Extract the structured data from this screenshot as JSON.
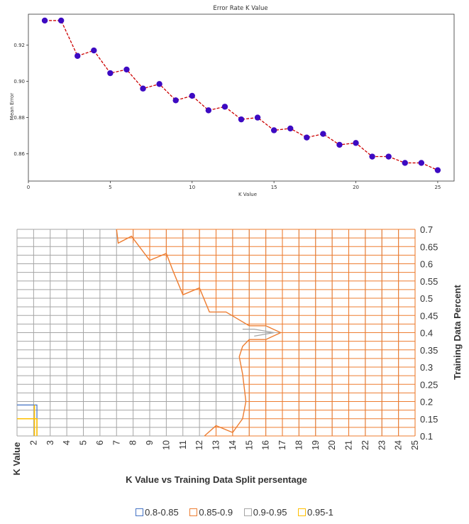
{
  "chart_data": [
    {
      "type": "line",
      "title": "Error Rate K Value",
      "xlabel": "K Value",
      "ylabel": "Mean Error",
      "xlim": [
        0,
        26
      ],
      "ylim": [
        0.845,
        0.937
      ],
      "xticks": [
        0,
        5,
        10,
        15,
        20,
        25
      ],
      "yticks": [
        0.86,
        0.88,
        0.9,
        0.92
      ],
      "ytick_labels": [
        "0.86",
        "0.88",
        "0.90",
        "0.92"
      ],
      "line_color": "#cc0000",
      "line_style": "dashed",
      "marker_color": "#3d0ac2",
      "x": [
        1,
        2,
        3,
        4,
        5,
        6,
        7,
        8,
        9,
        10,
        11,
        12,
        13,
        14,
        15,
        16,
        17,
        18,
        19,
        20,
        21,
        22,
        23,
        24,
        25
      ],
      "y": [
        0.9335,
        0.9335,
        0.914,
        0.917,
        0.9045,
        0.9065,
        0.896,
        0.8985,
        0.8895,
        0.892,
        0.884,
        0.886,
        0.879,
        0.88,
        0.873,
        0.874,
        0.869,
        0.871,
        0.865,
        0.866,
        0.8585,
        0.8585,
        0.855,
        0.855,
        0.851
      ]
    },
    {
      "type": "contour",
      "xlabel": "K Value vs Training Data Split persentage",
      "xlabel_left": "K Value",
      "ylabel": "Training Data Percent",
      "x_ticks": [
        "2",
        "3",
        "4",
        "5",
        "6",
        "7",
        "8",
        "9",
        "10",
        "11",
        "12",
        "13",
        "14",
        "15",
        "16",
        "17",
        "18",
        "19",
        "20",
        "21",
        "22",
        "23",
        "24",
        "25"
      ],
      "y_ticks": [
        "0.1",
        "0.15",
        "0.2",
        "0.25",
        "0.3",
        "0.35",
        "0.4",
        "0.45",
        "0.5",
        "0.55",
        "0.6",
        "0.65",
        "0.7"
      ],
      "grid": true,
      "legend": [
        {
          "label": "0.8-0.85",
          "color": "#4472c4"
        },
        {
          "label": "0.85-0.9",
          "color": "#ed7d31"
        },
        {
          "label": "0.9-0.95",
          "color": "#a5a5a5"
        },
        {
          "label": "0.95-1",
          "color": "#ffc000"
        }
      ],
      "boundary_085_09": [
        [
          7.0,
          0.7
        ],
        [
          7.1,
          0.66
        ],
        [
          7.9,
          0.68
        ],
        [
          9.0,
          0.61
        ],
        [
          10.0,
          0.63
        ],
        [
          10.4,
          0.58
        ],
        [
          11.0,
          0.51
        ],
        [
          12.0,
          0.53
        ],
        [
          12.6,
          0.46
        ],
        [
          13.6,
          0.46
        ],
        [
          15.0,
          0.42
        ],
        [
          16.0,
          0.42
        ],
        [
          16.9,
          0.4
        ],
        [
          16.0,
          0.38
        ],
        [
          15.0,
          0.38
        ],
        [
          14.6,
          0.36
        ],
        [
          14.4,
          0.33
        ],
        [
          14.6,
          0.28
        ],
        [
          14.8,
          0.2
        ],
        [
          14.6,
          0.15
        ],
        [
          14.0,
          0.11
        ],
        [
          13.0,
          0.13
        ],
        [
          12.3,
          0.1
        ]
      ],
      "boundary_09_095_top": [
        [
          14.6,
          0.41
        ],
        [
          15.3,
          0.41
        ],
        [
          16.5,
          0.4
        ],
        [
          15.3,
          0.39
        ]
      ],
      "region_095_1": {
        "x_max": 2.2,
        "y_max": 0.15
      },
      "region_08_085": {
        "x_max": 2.2,
        "y_max": 0.19
      }
    }
  ]
}
